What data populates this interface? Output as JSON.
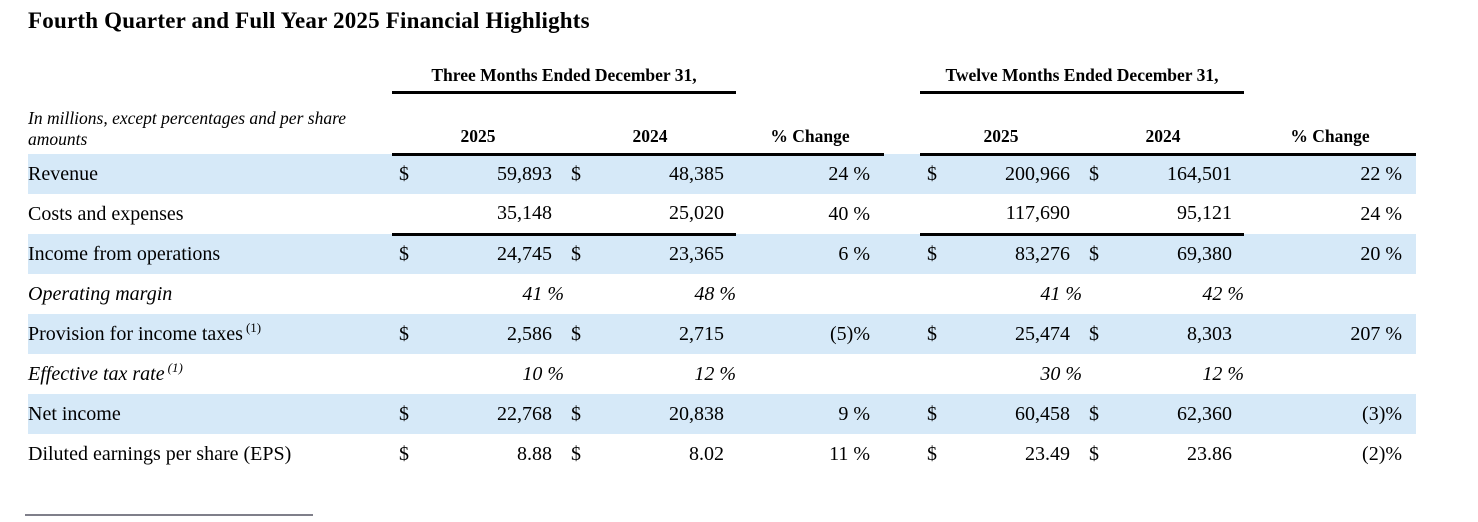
{
  "title": "Fourth Quarter and Full Year 2025 Financial Highlights",
  "table": {
    "note": "In millions, except percentages and per share amounts",
    "group_headers": [
      "Three Months Ended December 31,",
      "Twelve Months Ended December 31,"
    ],
    "column_headers": {
      "col_2025": "2025",
      "col_2024": "2024",
      "pct_change": "% Change"
    },
    "rows": [
      {
        "label": "Revenue",
        "sup": "",
        "q2025_sym": "$",
        "q2025": "59,893",
        "q2024_sym": "$",
        "q2024": "48,385",
        "q_change": "24 %",
        "y2025_sym": "$",
        "y2025": "200,966",
        "y2024_sym": "$",
        "y2024": "164,501",
        "y_change": "22 %"
      },
      {
        "label": "Costs and expenses",
        "sup": "",
        "q2025_sym": "",
        "q2025": "35,148",
        "q2024_sym": "",
        "q2024": "25,020",
        "q_change": "40 %",
        "y2025_sym": "",
        "y2025": "117,690",
        "y2024_sym": "",
        "y2024": "95,121",
        "y_change": "24 %"
      },
      {
        "label": "Income from operations",
        "sup": "",
        "q2025_sym": "$",
        "q2025": "24,745",
        "q2024_sym": "$",
        "q2024": "23,365",
        "q_change": "6 %",
        "y2025_sym": "$",
        "y2025": "83,276",
        "y2024_sym": "$",
        "y2024": "69,380",
        "y_change": "20 %"
      },
      {
        "label": "Operating margin",
        "sup": "",
        "q2025_sym": "",
        "q2025": "41 %",
        "q2024_sym": "",
        "q2024": "48 %",
        "q_change": "",
        "y2025_sym": "",
        "y2025": "41 %",
        "y2024_sym": "",
        "y2024": "42 %",
        "y_change": ""
      },
      {
        "label": "Provision for income taxes",
        "sup": "(1)",
        "q2025_sym": "$",
        "q2025": "2,586",
        "q2024_sym": "$",
        "q2024": "2,715",
        "q_change": "(5)%",
        "y2025_sym": "$",
        "y2025": "25,474",
        "y2024_sym": "$",
        "y2024": "8,303",
        "y_change": "207 %"
      },
      {
        "label": "Effective tax rate",
        "sup": "(1)",
        "q2025_sym": "",
        "q2025": "10 %",
        "q2024_sym": "",
        "q2024": "12 %",
        "q_change": "",
        "y2025_sym": "",
        "y2025": "30 %",
        "y2024_sym": "",
        "y2024": "12 %",
        "y_change": ""
      },
      {
        "label": "Net income",
        "sup": "",
        "q2025_sym": "$",
        "q2025": "22,768",
        "q2024_sym": "$",
        "q2024": "20,838",
        "q_change": "9 %",
        "y2025_sym": "$",
        "y2025": "60,458",
        "y2024_sym": "$",
        "y2024": "62,360",
        "y_change": "(3)%"
      },
      {
        "label": "Diluted earnings per share (EPS)",
        "sup": "",
        "q2025_sym": "$",
        "q2025": "8.88",
        "q2024_sym": "$",
        "q2024": "8.02",
        "q_change": "11 %",
        "y2025_sym": "$",
        "y2025": "23.49",
        "y2024_sym": "$",
        "y2024": "23.86",
        "y_change": "(2)%"
      }
    ]
  },
  "colors": {
    "row_highlight": "#d6e9f8",
    "text": "#000000",
    "footnote_rule": "#7f7f8a"
  }
}
